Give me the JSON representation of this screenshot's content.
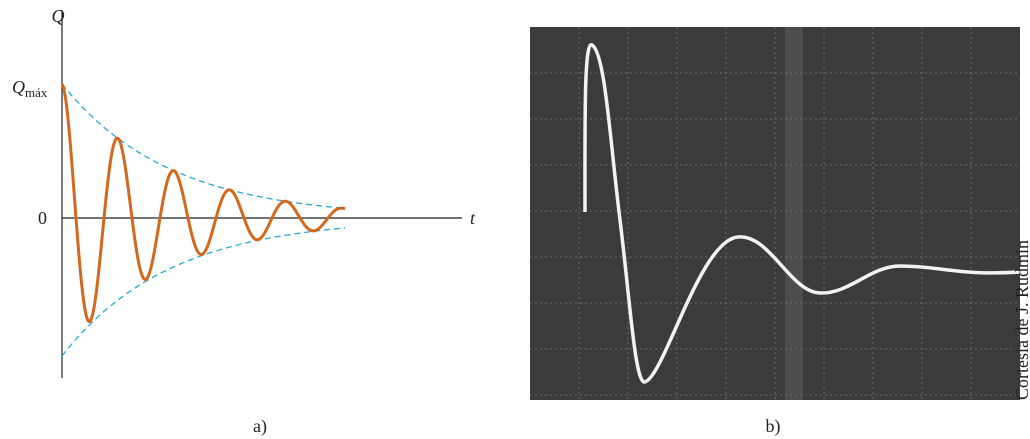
{
  "diagram_a": {
    "y_label": "Q",
    "q_max": "Q",
    "q_max_sub": "máx",
    "origin": "0",
    "x_label": "t",
    "caption": "a)"
  },
  "photo_b": {
    "caption": "b)",
    "credit": "Cortesía de J. Rudmin"
  }
}
